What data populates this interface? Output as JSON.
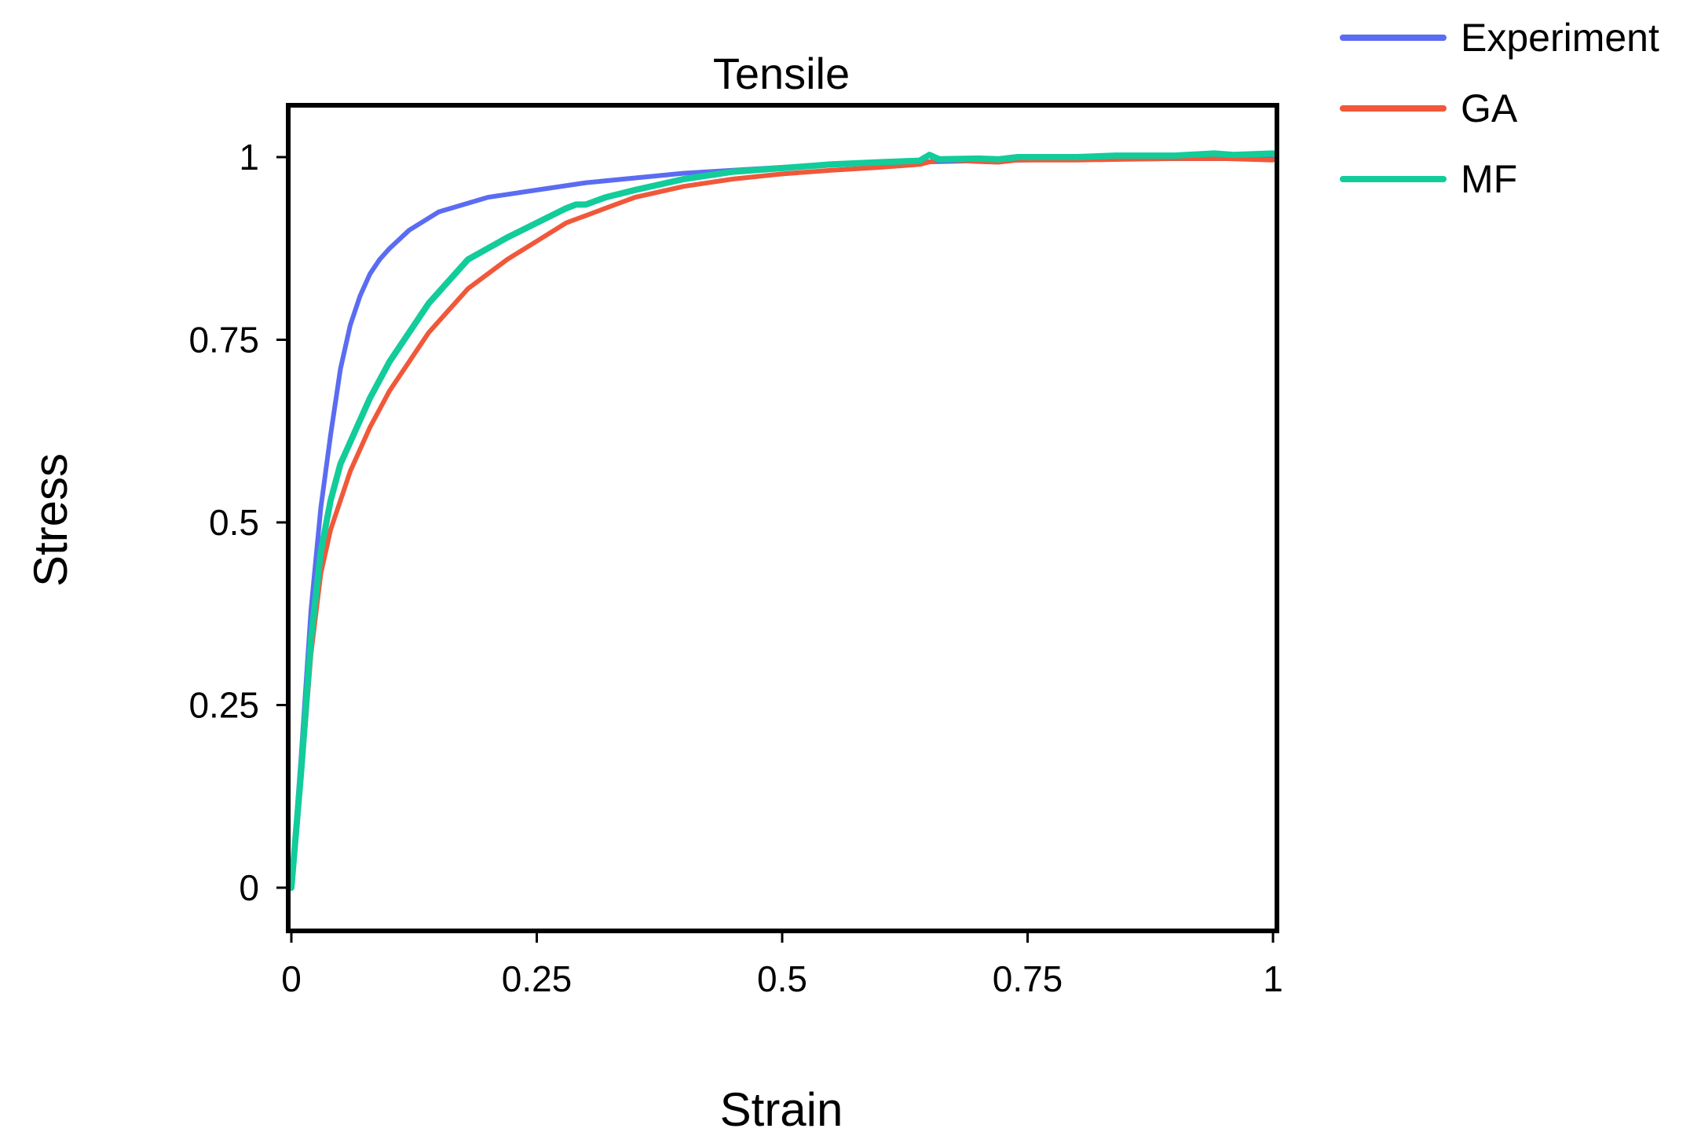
{
  "chart_data": {
    "type": "line",
    "title": "Tensile",
    "xlabel": "Strain",
    "ylabel": "Stress",
    "xlim": [
      0,
      1
    ],
    "ylim": [
      -0.06,
      1.07
    ],
    "xticks": [
      0,
      0.25,
      0.5,
      0.75,
      1
    ],
    "xtick_labels": [
      "0",
      "0.25",
      "0.5",
      "0.75",
      "1"
    ],
    "yticks": [
      0,
      0.25,
      0.5,
      0.75,
      1
    ],
    "ytick_labels": [
      "0",
      "0.25",
      "0.5",
      "0.75",
      "1"
    ],
    "grid": false,
    "legend_position": "top-right outside",
    "series": [
      {
        "name": "Experiment",
        "color": "#5b6cf2",
        "x": [
          0,
          0.01,
          0.02,
          0.03,
          0.04,
          0.05,
          0.06,
          0.07,
          0.08,
          0.09,
          0.1,
          0.12,
          0.15,
          0.2,
          0.25,
          0.3,
          0.4,
          0.5,
          0.6,
          0.7,
          0.8,
          0.9,
          1.0
        ],
        "y": [
          0,
          0.18,
          0.38,
          0.52,
          0.62,
          0.71,
          0.77,
          0.81,
          0.84,
          0.86,
          0.875,
          0.9,
          0.925,
          0.945,
          0.955,
          0.965,
          0.978,
          0.986,
          0.992,
          0.995,
          0.997,
          0.998,
          0.998
        ]
      },
      {
        "name": "GA",
        "color": "#f0583a",
        "x": [
          0,
          0.01,
          0.02,
          0.03,
          0.04,
          0.05,
          0.06,
          0.08,
          0.1,
          0.12,
          0.14,
          0.16,
          0.18,
          0.2,
          0.22,
          0.25,
          0.28,
          0.29,
          0.3,
          0.32,
          0.35,
          0.4,
          0.45,
          0.5,
          0.55,
          0.6,
          0.64,
          0.66,
          0.7,
          0.72,
          0.74,
          0.8,
          0.85,
          0.9,
          0.95,
          1.0
        ],
        "y": [
          0,
          0.15,
          0.32,
          0.43,
          0.49,
          0.53,
          0.57,
          0.63,
          0.68,
          0.72,
          0.76,
          0.79,
          0.82,
          0.84,
          0.86,
          0.885,
          0.91,
          0.915,
          0.92,
          0.93,
          0.945,
          0.96,
          0.97,
          0.977,
          0.982,
          0.986,
          0.99,
          0.997,
          0.994,
          0.993,
          0.996,
          0.996,
          0.997,
          0.998,
          0.998,
          0.996
        ]
      },
      {
        "name": "MF",
        "color": "#12cc9a",
        "x": [
          0,
          0.01,
          0.02,
          0.03,
          0.04,
          0.05,
          0.06,
          0.08,
          0.1,
          0.12,
          0.14,
          0.16,
          0.18,
          0.2,
          0.22,
          0.25,
          0.28,
          0.29,
          0.3,
          0.32,
          0.35,
          0.4,
          0.45,
          0.5,
          0.55,
          0.6,
          0.64,
          0.65,
          0.66,
          0.7,
          0.72,
          0.74,
          0.8,
          0.84,
          0.9,
          0.94,
          0.96,
          1.0
        ],
        "y": [
          0,
          0.16,
          0.34,
          0.46,
          0.53,
          0.58,
          0.61,
          0.67,
          0.72,
          0.76,
          0.8,
          0.83,
          0.86,
          0.875,
          0.89,
          0.91,
          0.93,
          0.935,
          0.935,
          0.945,
          0.955,
          0.97,
          0.98,
          0.985,
          0.99,
          0.993,
          0.995,
          1.003,
          0.997,
          0.998,
          0.997,
          1.0,
          1.0,
          1.002,
          1.002,
          1.005,
          1.003,
          1.005
        ]
      }
    ]
  }
}
